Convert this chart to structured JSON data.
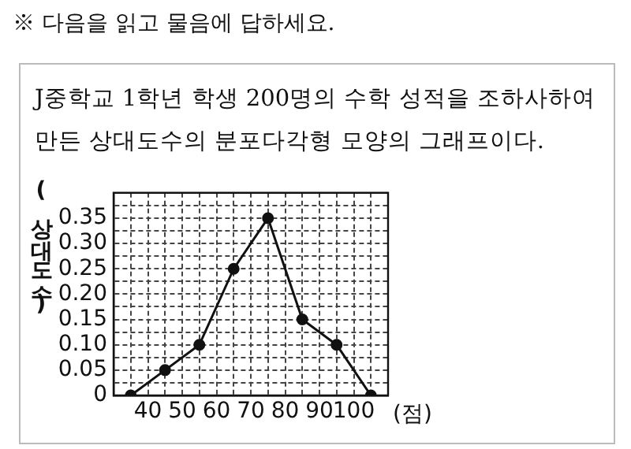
{
  "chart_data": {
    "type": "line",
    "title": "J중학교 1학년 학생 200명의 수학 성적을 조하사하여 만든 상대도수의 분포다각형 모양의 그래프이다.",
    "annotations": [
      "※ 다음을 읽고 물음에 답하세요."
    ],
    "xlabel": "(점)",
    "ylabel": "(상대도수)",
    "x": [
      35,
      45,
      55,
      65,
      75,
      85,
      95,
      105
    ],
    "series": [
      {
        "color": "#111111",
        "values": [
          0,
          0.05,
          0.1,
          0.25,
          0.35,
          0.15,
          0.1,
          0
        ]
      }
    ],
    "xlim": [
      30,
      110
    ],
    "xticks": [
      {
        "value": 30,
        "label": null
      },
      {
        "value": 35,
        "label": null
      },
      40,
      {
        "value": 45,
        "label": null
      },
      50,
      {
        "value": 55,
        "label": null
      },
      60,
      {
        "value": 65,
        "label": null
      },
      70,
      {
        "value": 75,
        "label": null
      },
      80,
      {
        "value": 85,
        "label": null
      },
      90,
      {
        "value": 95,
        "label": null
      },
      100,
      {
        "value": 105,
        "label": null
      },
      {
        "value": 110,
        "label": null
      }
    ],
    "ylim": [
      0,
      0.4
    ],
    "yticks": [
      {
        "value": 0,
        "label": "0"
      },
      {
        "value": 0.025,
        "label": null
      },
      {
        "value": 0.05,
        "label": "0.05"
      },
      {
        "value": 0.075,
        "label": null
      },
      {
        "value": 0.1,
        "label": "0.10"
      },
      {
        "value": 0.125,
        "label": null
      },
      {
        "value": 0.15,
        "label": "0.15"
      },
      {
        "value": 0.175,
        "label": null
      },
      {
        "value": 0.2,
        "label": "0.20"
      },
      {
        "value": 0.225,
        "label": null
      },
      {
        "value": 0.25,
        "label": "0.25"
      },
      {
        "value": 0.275,
        "label": null
      },
      {
        "value": 0.3,
        "label": "0.30"
      },
      {
        "value": 0.325,
        "label": null
      },
      {
        "value": 0.35,
        "label": "0.35"
      },
      {
        "value": 0.375,
        "label": null
      },
      {
        "value": 0.4,
        "label": null
      }
    ],
    "grid": true,
    "marker": "circle",
    "line_style": "solid",
    "legend": false
  }
}
